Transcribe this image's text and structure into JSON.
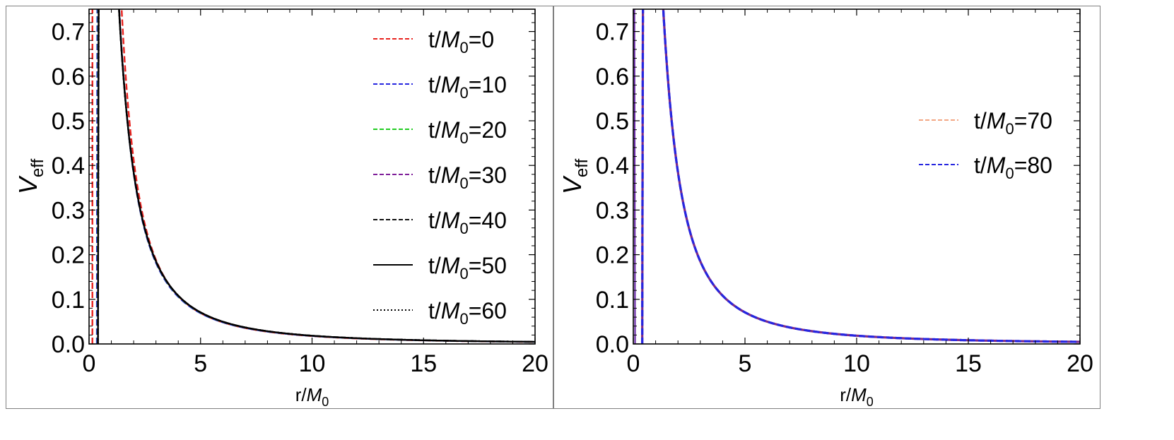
{
  "chart_data": [
    {
      "type": "line",
      "title": "",
      "xlabel": {
        "main": "r/",
        "italic": "M",
        "sub": "0"
      },
      "ylabel": {
        "italic": "V",
        "sub": "eff"
      },
      "xlim": [
        0,
        20
      ],
      "ylim": [
        0,
        0.75
      ],
      "xticks": [
        "0",
        "5",
        "10",
        "15",
        "20"
      ],
      "yticks": [
        "0.0",
        "0.1",
        "0.2",
        "0.3",
        "0.4",
        "0.5",
        "0.6",
        "0.7"
      ],
      "xtick_values": [
        0,
        5,
        10,
        15,
        20
      ],
      "ytick_values": [
        0,
        0.1,
        0.2,
        0.3,
        0.4,
        0.5,
        0.6,
        0.7
      ],
      "legend_position": "top-right",
      "series": [
        {
          "name": "t/M0=0",
          "label_pre": "t/",
          "label_it": "M",
          "label_sub": "0",
          "label_post": "=0",
          "color": "#e8231f",
          "dash": "dashed",
          "params": {
            "M": 0.56,
            "r0": 0.15
          }
        },
        {
          "name": "t/M0=10",
          "label_pre": "t/",
          "label_it": "M",
          "label_sub": "0",
          "label_post": "=10",
          "color": "#2626e0",
          "dash": "dashed",
          "params": {
            "M": 0.54,
            "r0": 0.35
          }
        },
        {
          "name": "t/M0=20",
          "label_pre": "t/",
          "label_it": "M",
          "label_sub": "0",
          "label_post": "=20",
          "color": "#22cc22",
          "dash": "dashed",
          "params": {
            "M": 0.527,
            "r0": 0.38
          }
        },
        {
          "name": "t/M0=30",
          "label_pre": "t/",
          "label_it": "M",
          "label_sub": "0",
          "label_post": "=30",
          "color": "#7f1f9a",
          "dash": "dashed",
          "params": {
            "M": 0.522,
            "r0": 0.39
          }
        },
        {
          "name": "t/M0=40",
          "label_pre": "t/",
          "label_it": "M",
          "label_sub": "0",
          "label_post": "=40",
          "color": "#111111",
          "dash": "dashed",
          "params": {
            "M": 0.52,
            "r0": 0.395
          }
        },
        {
          "name": "t/M0=50",
          "label_pre": "t/",
          "label_it": "M",
          "label_sub": "0",
          "label_post": "=50",
          "color": "#000000",
          "dash": "solid",
          "params": {
            "M": 0.52,
            "r0": 0.4
          }
        },
        {
          "name": "t/M0=60",
          "label_pre": "t/",
          "label_it": "M",
          "label_sub": "0",
          "label_post": "=60",
          "color": "#000000",
          "dash": "dotted",
          "params": {
            "M": 0.52,
            "r0": 0.4
          }
        }
      ]
    },
    {
      "type": "line",
      "title": "",
      "xlabel": {
        "main": "r/",
        "italic": "M",
        "sub": "0"
      },
      "ylabel": {
        "italic": "V",
        "sub": "eff"
      },
      "xlim": [
        0,
        20
      ],
      "ylim": [
        0,
        0.75
      ],
      "xticks": [
        "0",
        "5",
        "10",
        "15",
        "20"
      ],
      "yticks": [
        "0.0",
        "0.1",
        "0.2",
        "0.3",
        "0.4",
        "0.5",
        "0.6",
        "0.7"
      ],
      "xtick_values": [
        0,
        5,
        10,
        15,
        20
      ],
      "ytick_values": [
        0,
        0.1,
        0.2,
        0.3,
        0.4,
        0.5,
        0.6,
        0.7
      ],
      "legend_position": "right",
      "series": [
        {
          "name": "t/M0=70",
          "label_pre": "t/",
          "label_it": "M",
          "label_sub": "0",
          "label_post": "=70",
          "color": "#ef8a5c",
          "dash": "thin-dashed",
          "params": {
            "M": 0.52,
            "r0": 0.4
          }
        },
        {
          "name": "t/M0=80",
          "label_pre": "t/",
          "label_it": "M",
          "label_sub": "0",
          "label_post": "=80",
          "color": "#2626e0",
          "dash": "dashed",
          "params": {
            "M": 0.52,
            "r0": 0.4
          }
        }
      ],
      "extra_marks": [
        {
          "name": "left-edge-spike",
          "color": "#6a2aa8",
          "points": [
            [
              0,
              0.75
            ],
            [
              0.05,
              0.75
            ],
            [
              0.08,
              0.0
            ]
          ]
        }
      ]
    }
  ]
}
